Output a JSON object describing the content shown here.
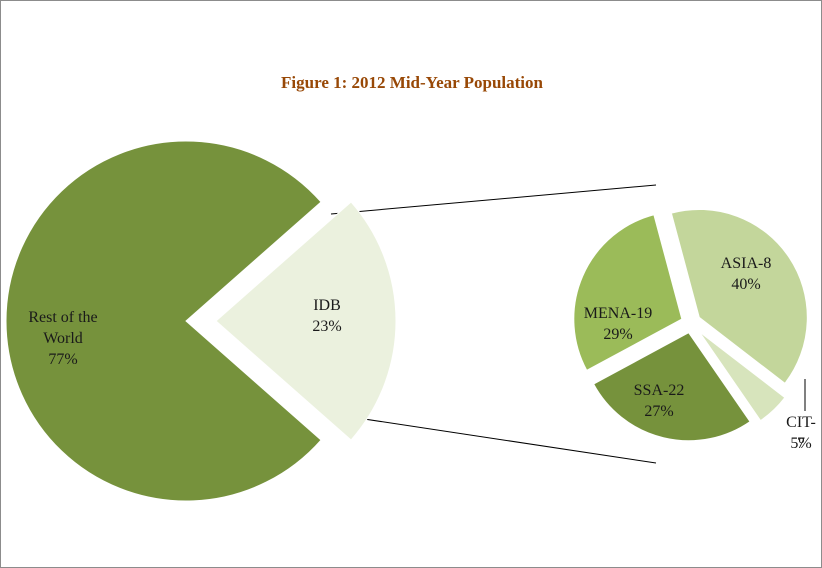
{
  "chart_data": [
    {
      "type": "pie",
      "title": "Figure 1: 2012 Mid-Year Population",
      "categories": [
        "Rest of the World",
        "IDB"
      ],
      "values": [
        77,
        23
      ],
      "value_labels": [
        "77%",
        "23%"
      ],
      "colors": [
        "#76923c",
        "#ebf1de"
      ]
    },
    {
      "type": "pie",
      "categories": [
        "ASIA-8",
        "CIT-7",
        "SSA-22",
        "MENA-19"
      ],
      "values": [
        40,
        5,
        27,
        29
      ],
      "value_labels": [
        "40%",
        "5%",
        "27%",
        "29%"
      ],
      "colors": [
        "#c3d69b",
        "#d7e4bc",
        "#76923c",
        "#9bbb59"
      ]
    }
  ]
}
